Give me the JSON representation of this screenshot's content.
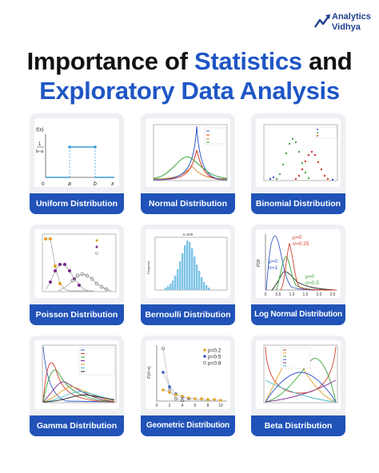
{
  "brand": {
    "line1": "Analytics",
    "line2": "Vidhya",
    "color": "#1f3f8f"
  },
  "headline": {
    "part1": "Importance of ",
    "part2_blue": "Statistics",
    "part3": " and",
    "line2": "Exploratory Data Analysis"
  },
  "cards": [
    {
      "label": "Uniform Distribution"
    },
    {
      "label": "Normal Distribution"
    },
    {
      "label": "Binomial Distribution"
    },
    {
      "label": "Poisson Distribution"
    },
    {
      "label": "Bernoulli Distribution"
    },
    {
      "label": "Log Normal Distribution"
    },
    {
      "label": "Gamma Distribution"
    },
    {
      "label": "Geometric Distribution"
    },
    {
      "label": "Beta Distribution"
    }
  ],
  "uniform": {
    "fx": "f(x)",
    "frac_top": "1",
    "frac_bot": "b−a",
    "zero": "0",
    "a": "a",
    "b": "b",
    "x": "x"
  },
  "lognormal": {
    "mu0_top": "μ=0",
    "sigma025": "σ=0.25",
    "mu0_mid": "μ=0",
    "sigma1": "σ=1",
    "mu0_low": "μ=0",
    "sigma05": "σ=0.5",
    "ylabel": "PDF",
    "ticks": [
      "0",
      "0.5",
      "1.0",
      "1.5",
      "2.0",
      "2.5"
    ]
  },
  "geometric": {
    "ylabel": "P(X=x)",
    "legend": [
      "p=0.2",
      "p=0.5",
      "p=0.8"
    ],
    "ticks": [
      "0",
      "2",
      "4",
      "6",
      "8",
      "10"
    ]
  },
  "bernoulli": {
    "title": "n=200",
    "ylabel": "Frequency"
  },
  "colors": {
    "accent": "#2052b8",
    "headline_blue": "#1f56c6"
  }
}
